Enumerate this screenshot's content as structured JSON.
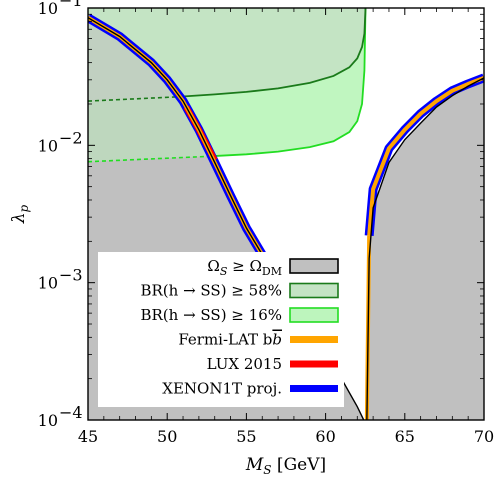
{
  "chart_data": {
    "type": "area",
    "xlabel_main": "M",
    "xlabel_sub": "S",
    "xlabel_unit": " [GeV]",
    "ylabel_main": "λ",
    "ylabel_sub": "p",
    "xlim": [
      45,
      70
    ],
    "ylim": [
      0.0001,
      0.1
    ],
    "yscale": "log",
    "xticks": [
      45,
      50,
      55,
      60,
      65,
      70
    ],
    "xtick_labels": [
      "45",
      "50",
      "55",
      "60",
      "65",
      "70"
    ],
    "yticks": [
      0.0001,
      0.001,
      0.01,
      0.1
    ],
    "ytick_base": "10",
    "ytick_exps": [
      "−4",
      "−3",
      "−2",
      "−1"
    ],
    "colors": {
      "relic": "#c0c0c0",
      "br58_fill": "#c4e3c4",
      "br58_line": "#1a7a1a",
      "br16_fill": "#bdf5bd",
      "br16_line": "#22dd22",
      "fermi": "#ffa500",
      "lux": "#ff0000",
      "xenon": "#0000ff"
    },
    "relic_curve": [
      {
        "x": 45.0,
        "y": 0.085
      },
      {
        "x": 47.0,
        "y": 0.062
      },
      {
        "x": 49.0,
        "y": 0.04
      },
      {
        "x": 50.0,
        "y": 0.03
      },
      {
        "x": 51.0,
        "y": 0.021
      },
      {
        "x": 52.0,
        "y": 0.013
      },
      {
        "x": 53.0,
        "y": 0.0075
      },
      {
        "x": 54.0,
        "y": 0.0043
      },
      {
        "x": 55.0,
        "y": 0.0025
      },
      {
        "x": 56.0,
        "y": 0.0016
      },
      {
        "x": 57.0,
        "y": 0.0011
      },
      {
        "x": 58.0,
        "y": 0.00075
      },
      {
        "x": 59.0,
        "y": 0.0005
      },
      {
        "x": 60.0,
        "y": 0.00032
      },
      {
        "x": 61.0,
        "y": 0.0002
      },
      {
        "x": 62.0,
        "y": 0.000125
      },
      {
        "x": 62.6,
        "y": 9e-05
      },
      {
        "x": 62.75,
        "y": 0.0015
      },
      {
        "x": 63.0,
        "y": 0.0035
      },
      {
        "x": 64.0,
        "y": 0.0075
      },
      {
        "x": 65.0,
        "y": 0.011
      },
      {
        "x": 66.0,
        "y": 0.0145
      },
      {
        "x": 67.0,
        "y": 0.019
      },
      {
        "x": 68.0,
        "y": 0.023
      },
      {
        "x": 69.0,
        "y": 0.027
      },
      {
        "x": 70.0,
        "y": 0.031
      }
    ],
    "fermi_left": [
      {
        "x": 45.0,
        "y": 0.085
      },
      {
        "x": 47.0,
        "y": 0.062
      },
      {
        "x": 49.0,
        "y": 0.04
      },
      {
        "x": 50.0,
        "y": 0.03
      },
      {
        "x": 51.0,
        "y": 0.021
      },
      {
        "x": 52.0,
        "y": 0.013
      },
      {
        "x": 53.0,
        "y": 0.0075
      },
      {
        "x": 54.0,
        "y": 0.0043
      },
      {
        "x": 55.0,
        "y": 0.0025
      },
      {
        "x": 56.0,
        "y": 0.0016
      },
      {
        "x": 57.0,
        "y": 0.0011
      }
    ],
    "fermi_right": [
      {
        "x": 62.75,
        "y": 0.0022
      },
      {
        "x": 63.0,
        "y": 0.0048
      },
      {
        "x": 64.0,
        "y": 0.0095
      },
      {
        "x": 65.0,
        "y": 0.013
      },
      {
        "x": 66.0,
        "y": 0.017
      },
      {
        "x": 67.0,
        "y": 0.021
      },
      {
        "x": 68.0,
        "y": 0.025
      },
      {
        "x": 69.0,
        "y": 0.028
      },
      {
        "x": 70.0,
        "y": 0.031
      }
    ],
    "fermi_right_tail": [
      {
        "x": 62.6,
        "y": 9e-05
      },
      {
        "x": 62.75,
        "y": 0.0022
      }
    ],
    "lux_left": [
      {
        "x": 51.2,
        "y": 0.019
      },
      {
        "x": 52.0,
        "y": 0.013
      },
      {
        "x": 53.0,
        "y": 0.0078
      }
    ],
    "xenon_left": [
      {
        "x": 45.0,
        "y": 0.085
      },
      {
        "x": 47.0,
        "y": 0.062
      },
      {
        "x": 49.0,
        "y": 0.04
      },
      {
        "x": 50.0,
        "y": 0.03
      },
      {
        "x": 51.0,
        "y": 0.021
      },
      {
        "x": 52.0,
        "y": 0.013
      },
      {
        "x": 53.0,
        "y": 0.0075
      },
      {
        "x": 54.0,
        "y": 0.0043
      },
      {
        "x": 55.0,
        "y": 0.0025
      },
      {
        "x": 56.0,
        "y": 0.0016
      },
      {
        "x": 57.0,
        "y": 0.0011
      }
    ],
    "xenon_right": [
      {
        "x": 62.75,
        "y": 0.0022
      },
      {
        "x": 63.0,
        "y": 0.0048
      },
      {
        "x": 64.0,
        "y": 0.0095
      },
      {
        "x": 65.0,
        "y": 0.013
      },
      {
        "x": 66.0,
        "y": 0.017
      },
      {
        "x": 67.0,
        "y": 0.021
      },
      {
        "x": 68.0,
        "y": 0.025
      },
      {
        "x": 69.0,
        "y": 0.028
      },
      {
        "x": 70.0,
        "y": 0.031
      }
    ],
    "br58_boundary": [
      {
        "x": 50.5,
        "y": 0.0225
      },
      {
        "x": 53.0,
        "y": 0.0235
      },
      {
        "x": 55.0,
        "y": 0.0245
      },
      {
        "x": 57.0,
        "y": 0.026
      },
      {
        "x": 59.0,
        "y": 0.0285
      },
      {
        "x": 60.5,
        "y": 0.032
      },
      {
        "x": 61.5,
        "y": 0.037
      },
      {
        "x": 62.0,
        "y": 0.043
      },
      {
        "x": 62.3,
        "y": 0.052
      },
      {
        "x": 62.45,
        "y": 0.065
      },
      {
        "x": 62.52,
        "y": 0.1
      }
    ],
    "br58_dashed": [
      {
        "x": 45.0,
        "y": 0.021
      },
      {
        "x": 50.5,
        "y": 0.0225
      }
    ],
    "br16_boundary": [
      {
        "x": 52.5,
        "y": 0.0083
      },
      {
        "x": 55.0,
        "y": 0.0086
      },
      {
        "x": 57.0,
        "y": 0.009
      },
      {
        "x": 59.0,
        "y": 0.0097
      },
      {
        "x": 60.5,
        "y": 0.0107
      },
      {
        "x": 61.5,
        "y": 0.0125
      },
      {
        "x": 62.0,
        "y": 0.015
      },
      {
        "x": 62.3,
        "y": 0.02
      },
      {
        "x": 62.45,
        "y": 0.035
      },
      {
        "x": 62.52,
        "y": 0.1
      }
    ],
    "br16_dashed": [
      {
        "x": 45.0,
        "y": 0.0076
      },
      {
        "x": 52.5,
        "y": 0.0083
      }
    ],
    "legend": [
      {
        "kind": "box",
        "fill": "#c0c0c0",
        "stroke": "#000000",
        "label_main": "Ω",
        "label_sub": "S",
        "label_rel": " ≥ ",
        "label_main2": "Ω",
        "label_sub2": "DM"
      },
      {
        "kind": "box",
        "fill": "#c4e3c4",
        "stroke": "#1a7a1a",
        "label": "BR(h → SS) ≥ 58%"
      },
      {
        "kind": "box",
        "fill": "#bdf5bd",
        "stroke": "#22dd22",
        "label": "BR(h → SS) ≥ 16%"
      },
      {
        "kind": "line",
        "color": "#ffa500",
        "label": "Fermi-LAT b",
        "label_bbar": "b"
      },
      {
        "kind": "line",
        "color": "#ff0000",
        "label": "LUX 2015"
      },
      {
        "kind": "line",
        "color": "#0000ff",
        "label": "XENON1T proj."
      }
    ]
  }
}
